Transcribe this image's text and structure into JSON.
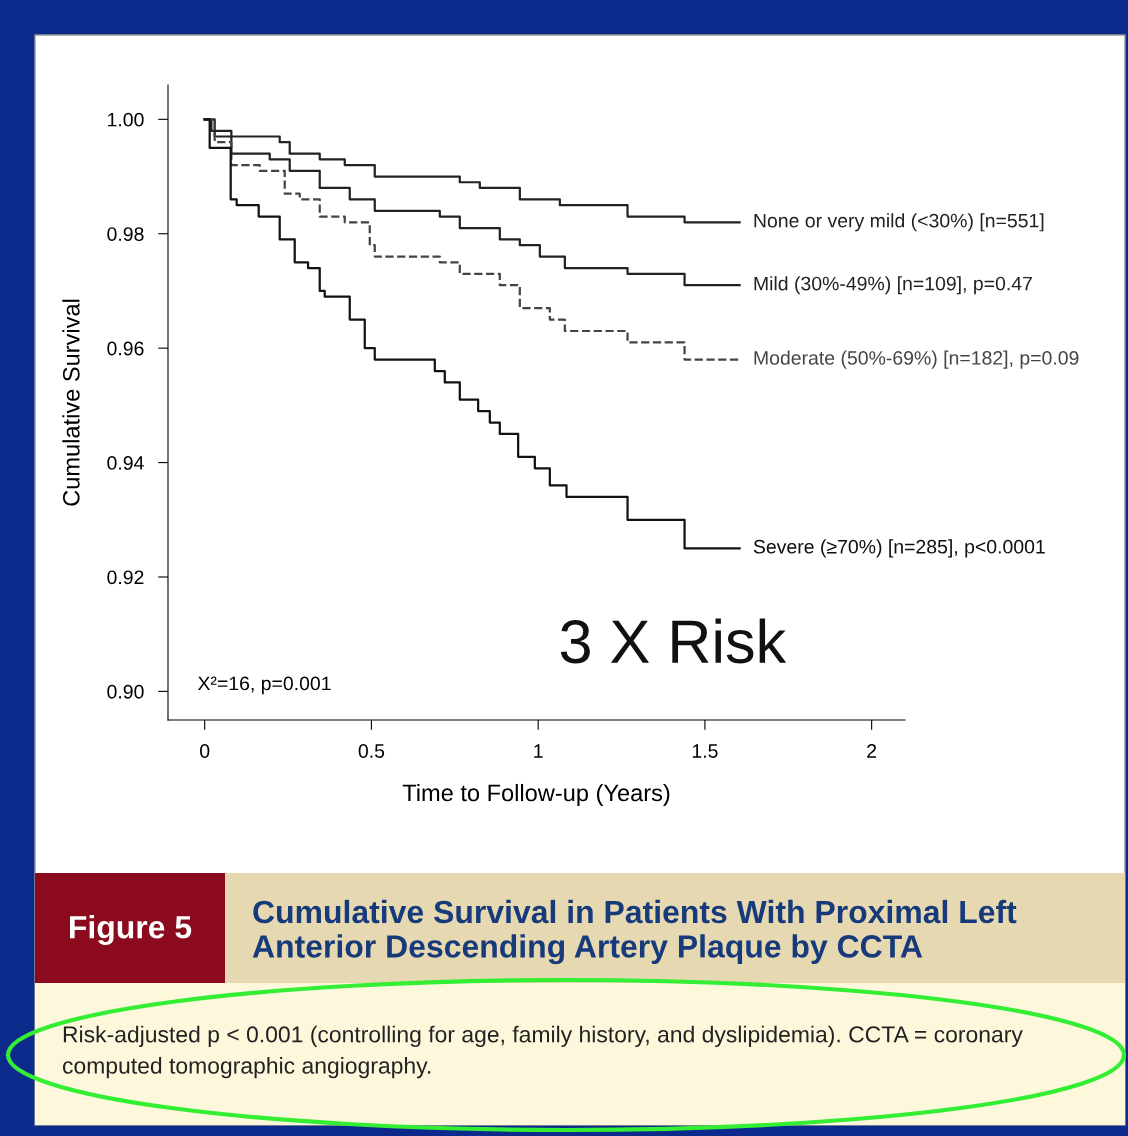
{
  "chart_data": {
    "type": "step",
    "title": "Cumulative Survival in Patients With Proximal Left Anterior Descending Artery Plaque by CCTA",
    "xlabel": "Time to Follow-up (Years)",
    "ylabel": "Cumulative Survival",
    "xlim": [
      -0.11,
      2.1
    ],
    "ylim": [
      0.895,
      1.006
    ],
    "xticks": [
      0,
      0.5,
      1,
      1.5,
      2
    ],
    "yticks": [
      {
        "value": 0.9,
        "label": "0.90"
      },
      {
        "value": 0.92,
        "label": "0.92"
      },
      {
        "value": 0.94,
        "label": "0.94"
      },
      {
        "value": 0.96,
        "label": "0.96"
      },
      {
        "value": 0.98,
        "label": "0.98"
      },
      {
        "value": 1.0,
        "label": "1.00"
      }
    ],
    "grid": false,
    "legend": false,
    "marker": "none",
    "series": [
      {
        "name": "None or very mild (<30%) [n=551]",
        "color": "#222222",
        "line_style": "solid",
        "x": [
          0,
          0.02,
          0.08,
          0.225,
          0.255,
          0.345,
          0.42,
          0.51,
          0.765,
          0.825,
          0.945,
          1.065,
          1.268,
          1.439,
          1.604
        ],
        "values": [
          1.0,
          0.998,
          0.997,
          0.996,
          0.994,
          0.993,
          0.992,
          0.99,
          0.989,
          0.988,
          0.986,
          0.985,
          0.983,
          0.982,
          0.982
        ]
      },
      {
        "name": "Mild (30%-49%) [n=109], p=0.47",
        "color": "#222222",
        "line_style": "solid",
        "x": [
          0,
          0.03,
          0.08,
          0.195,
          0.255,
          0.345,
          0.435,
          0.51,
          0.705,
          0.765,
          0.885,
          0.945,
          1.005,
          1.08,
          1.268,
          1.439,
          1.604
        ],
        "values": [
          1.0,
          0.997,
          0.994,
          0.993,
          0.991,
          0.988,
          0.986,
          0.984,
          0.983,
          0.981,
          0.979,
          0.978,
          0.976,
          0.974,
          0.973,
          0.971,
          0.971
        ]
      },
      {
        "name": "Moderate (50%-69%) [n=182], p=0.09",
        "color": "#444444",
        "line_style": "dashed",
        "x": [
          0,
          0.03,
          0.08,
          0.165,
          0.24,
          0.285,
          0.345,
          0.42,
          0.495,
          0.51,
          0.705,
          0.765,
          0.885,
          0.945,
          1.035,
          1.08,
          1.268,
          1.439,
          1.604
        ],
        "values": [
          1.0,
          0.996,
          0.992,
          0.991,
          0.987,
          0.986,
          0.983,
          0.982,
          0.978,
          0.976,
          0.975,
          0.973,
          0.971,
          0.967,
          0.965,
          0.963,
          0.961,
          0.958,
          0.958
        ]
      },
      {
        "name": "Severe (≥70%) [n=285], p<0.0001",
        "color": "#111111",
        "line_style": "solid",
        "x": [
          0,
          0.015,
          0.078,
          0.096,
          0.162,
          0.225,
          0.27,
          0.31,
          0.345,
          0.36,
          0.435,
          0.48,
          0.51,
          0.69,
          0.72,
          0.765,
          0.82,
          0.855,
          0.885,
          0.94,
          0.99,
          1.035,
          1.085,
          1.268,
          1.439,
          1.604
        ],
        "values": [
          1.0,
          0.995,
          0.986,
          0.985,
          0.983,
          0.979,
          0.975,
          0.974,
          0.97,
          0.969,
          0.965,
          0.96,
          0.958,
          0.956,
          0.954,
          0.951,
          0.949,
          0.947,
          0.945,
          0.941,
          0.939,
          0.936,
          0.934,
          0.93,
          0.925,
          0.925
        ]
      }
    ],
    "annotations": [
      "X²=16, p=0.001",
      "3 X Risk",
      "Figure 5",
      "Risk-adjusted p < 0.001 (controlling for age, family history, and dyslipidemia). CCTA = coronary computed tomographic angiography."
    ]
  }
}
